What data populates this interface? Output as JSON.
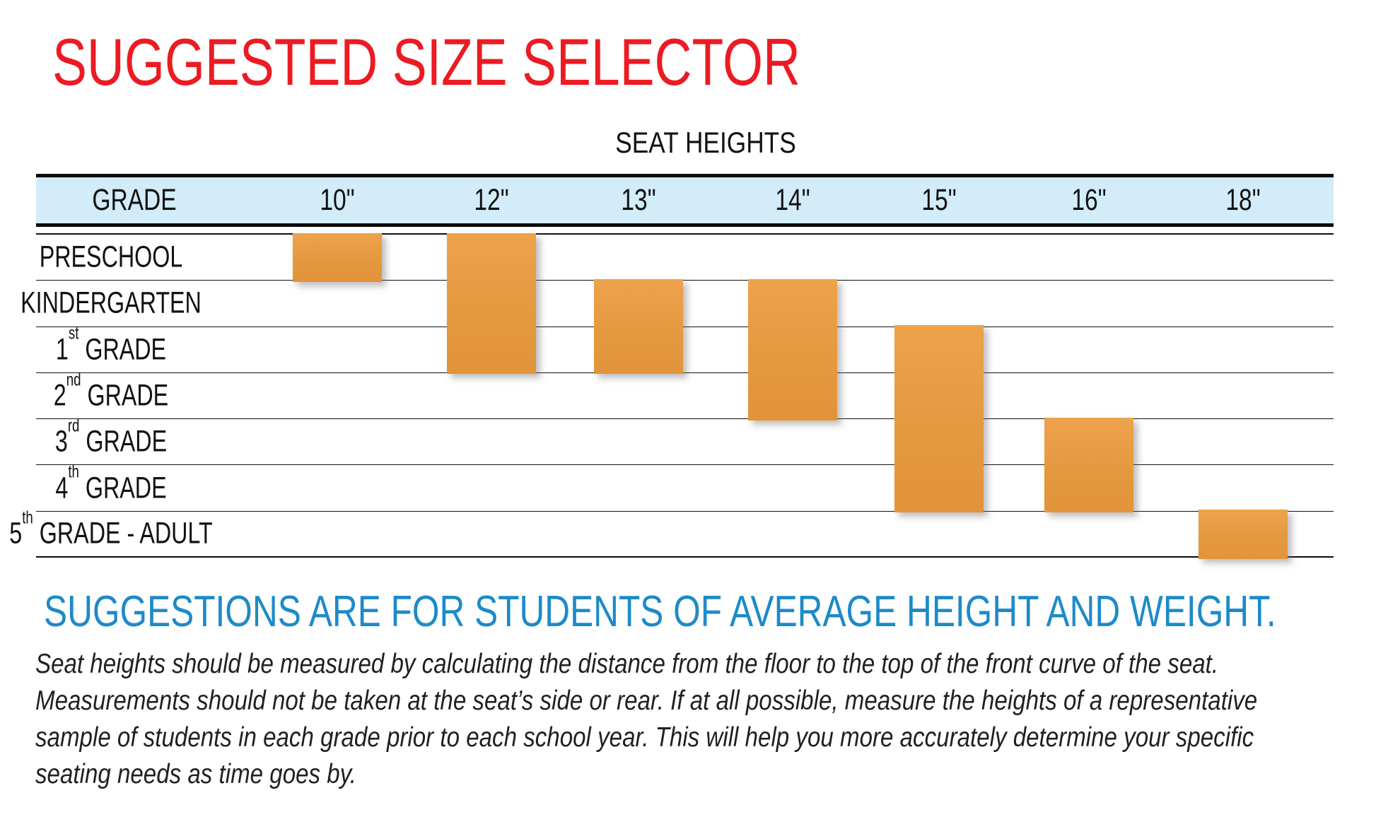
{
  "page_title": "SUGGESTED SIZE SELECTOR",
  "table_caption": "SEAT HEIGHTS",
  "header": {
    "grade": "GRADE",
    "columns": [
      "10\"",
      "12\"",
      "13\"",
      "14\"",
      "15\"",
      "16\"",
      "18\""
    ]
  },
  "rows": [
    {
      "prefix": "PRESCHOOL",
      "sup": "",
      "rest": ""
    },
    {
      "prefix": "KINDERGARTEN",
      "sup": "",
      "rest": ""
    },
    {
      "prefix": "1",
      "sup": "st",
      "rest": " GRADE"
    },
    {
      "prefix": "2",
      "sup": "nd",
      "rest": " GRADE"
    },
    {
      "prefix": "3",
      "sup": "rd",
      "rest": " GRADE"
    },
    {
      "prefix": "4",
      "sup": "th",
      "rest": " GRADE"
    },
    {
      "prefix": "5",
      "sup": "th",
      "rest": " GRADE - ADULT"
    }
  ],
  "chart_data": {
    "type": "table",
    "title": "SEAT HEIGHTS",
    "row_categories": [
      "PRESCHOOL",
      "KINDERGARTEN",
      "1st GRADE",
      "2nd GRADE",
      "3rd GRADE",
      "4th GRADE",
      "5th GRADE - ADULT"
    ],
    "columns": [
      "10\"",
      "12\"",
      "13\"",
      "14\"",
      "15\"",
      "16\"",
      "18\""
    ],
    "bars": [
      {
        "column": "10\"",
        "col_index": 0,
        "row_start": 0,
        "row_end": 0,
        "grades": "PRESCHOOL"
      },
      {
        "column": "12\"",
        "col_index": 1,
        "row_start": 0,
        "row_end": 2,
        "grades": "PRESCHOOL - 1st GRADE"
      },
      {
        "column": "13\"",
        "col_index": 2,
        "row_start": 1,
        "row_end": 2,
        "grades": "KINDERGARTEN - 1st GRADE"
      },
      {
        "column": "14\"",
        "col_index": 3,
        "row_start": 1,
        "row_end": 3,
        "grades": "KINDERGARTEN - 2nd GRADE"
      },
      {
        "column": "15\"",
        "col_index": 4,
        "row_start": 2,
        "row_end": 5,
        "grades": "1st GRADE - 4th GRADE"
      },
      {
        "column": "16\"",
        "col_index": 5,
        "row_start": 4,
        "row_end": 5,
        "grades": "3rd GRADE - 4th GRADE"
      },
      {
        "column": "18\"",
        "col_index": 6,
        "row_start": 6,
        "row_end": 6,
        "grades": "5th GRADE - ADULT"
      }
    ],
    "bar_color": "#E5993F",
    "legend_position": "none",
    "grid": "horizontal-lines"
  },
  "footer": {
    "headline": "SUGGESTIONS ARE FOR STUDENTS OF AVERAGE HEIGHT AND WEIGHT.",
    "body_lines": [
      "Seat heights should be measured by calculating the distance from the floor to the top of the front curve of the seat.",
      "Measurements should not be taken at the seat’s side or rear.  If at all possible, measure the heights of a representative",
      "sample of students in each grade prior to each school year.  This will help you more accurately determine your specific",
      "seating needs as time goes by."
    ]
  },
  "colors": {
    "title_red": "#EC1B23",
    "header_bg": "#D3ECF9",
    "bar_orange": "#E5993F",
    "headline_blue": "#1D8AC8",
    "body_text": "#231F20",
    "line_black": "#111111"
  }
}
